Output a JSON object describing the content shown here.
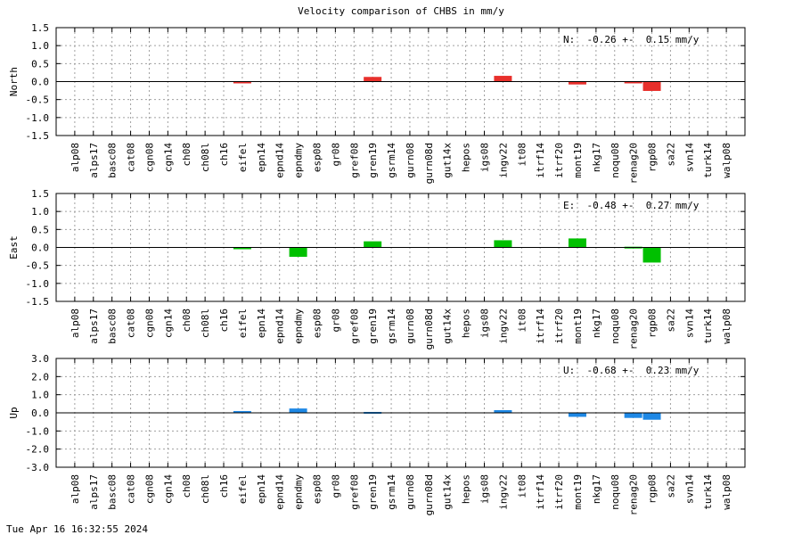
{
  "title": "Velocity comparison of CHBS in mm/y",
  "timestamp": "Tue Apr 16 16:32:55 2024",
  "chart_data": [
    {
      "type": "bar",
      "ylabel": "North",
      "ylim": [
        -1.5,
        1.5
      ],
      "yticks": [
        "1.5",
        "1.0",
        "0.5",
        "0.0",
        "-0.5",
        "-1.0",
        "-1.5"
      ],
      "ytick_values": [
        1.5,
        1.0,
        0.5,
        0.0,
        -0.5,
        -1.0,
        -1.5
      ],
      "annotation": "N:  -0.26 +-  0.15 mm/y",
      "color": "#e8302c",
      "grid": true,
      "categories": [
        "alp08",
        "alps17",
        "basc08",
        "cat08",
        "cgn08",
        "cgn14",
        "ch08",
        "ch08l",
        "ch16",
        "eifel",
        "epn14",
        "epnd14",
        "epndmy",
        "esp08",
        "gr08",
        "gref08",
        "gren19",
        "gsrm14",
        "gurn08",
        "gurn08d",
        "gut14x",
        "hepos",
        "igs08",
        "ingv22",
        "it08",
        "itrf14",
        "itrf20",
        "mont19",
        "nkg17",
        "noqu08",
        "renag20",
        "rgp08",
        "sa22",
        "svn14",
        "turk14",
        "walp08"
      ],
      "values": [
        0,
        0,
        0,
        0,
        0,
        0,
        0,
        0,
        0,
        -0.02,
        0,
        0,
        0,
        0,
        0,
        0,
        0.13,
        0,
        0,
        0,
        0,
        0,
        0,
        0.16,
        0,
        0,
        0,
        -0.08,
        0,
        0,
        -0.03,
        -0.26,
        0,
        0,
        0,
        0
      ]
    },
    {
      "type": "bar",
      "ylabel": "East",
      "ylim": [
        -1.5,
        1.5
      ],
      "yticks": [
        "1.5",
        "1.0",
        "0.5",
        "0.0",
        "-0.5",
        "-1.0",
        "-1.5"
      ],
      "ytick_values": [
        1.5,
        1.0,
        0.5,
        0.0,
        -0.5,
        -1.0,
        -1.5
      ],
      "annotation": "E:  -0.48 +-  0.27 mm/y",
      "color": "#00c000",
      "grid": true,
      "categories": [
        "alp08",
        "alps17",
        "basc08",
        "cat08",
        "cgn08",
        "cgn14",
        "ch08",
        "ch08l",
        "ch16",
        "eifel",
        "epn14",
        "epnd14",
        "epndmy",
        "esp08",
        "gr08",
        "gref08",
        "gren19",
        "gsrm14",
        "gurn08",
        "gurn08d",
        "gut14x",
        "hepos",
        "igs08",
        "ingv22",
        "it08",
        "itrf14",
        "itrf20",
        "mont19",
        "nkg17",
        "noqu08",
        "renag20",
        "rgp08",
        "sa22",
        "svn14",
        "turk14",
        "walp08"
      ],
      "values": [
        0,
        0,
        0,
        0,
        0,
        0,
        0,
        0,
        0,
        -0.03,
        0,
        0,
        -0.26,
        0,
        0,
        0,
        0.17,
        0,
        0,
        0,
        0,
        0,
        0,
        0.2,
        0,
        0,
        0,
        0.25,
        0,
        0,
        0.02,
        -0.42,
        0,
        0,
        0,
        0
      ]
    },
    {
      "type": "bar",
      "ylabel": "Up",
      "ylim": [
        -3.0,
        3.0
      ],
      "yticks": [
        "3.0",
        "2.0",
        "1.0",
        "0.0",
        "-1.0",
        "-2.0",
        "-3.0"
      ],
      "ytick_values": [
        3.0,
        2.0,
        1.0,
        0.0,
        -1.0,
        -2.0,
        -3.0
      ],
      "annotation": "U:  -0.68 +-  0.23 mm/y",
      "color": "#1e88e5",
      "grid": true,
      "categories": [
        "alp08",
        "alps17",
        "basc08",
        "cat08",
        "cgn08",
        "cgn14",
        "ch08",
        "ch08l",
        "ch16",
        "eifel",
        "epn14",
        "epnd14",
        "epndmy",
        "esp08",
        "gr08",
        "gref08",
        "gren19",
        "gsrm14",
        "gurn08",
        "gurn08d",
        "gut14x",
        "hepos",
        "igs08",
        "ingv22",
        "it08",
        "itrf14",
        "itrf20",
        "mont19",
        "nkg17",
        "noqu08",
        "renag20",
        "rgp08",
        "sa22",
        "svn14",
        "turk14",
        "walp08"
      ],
      "values": [
        0,
        0,
        0,
        0,
        0,
        0,
        0,
        0,
        0,
        0.1,
        0,
        0,
        0.24,
        0,
        0,
        0,
        0.05,
        0,
        0,
        0,
        0,
        0,
        0,
        0.15,
        0,
        0,
        0,
        -0.22,
        0,
        0,
        -0.28,
        -0.38,
        0,
        0,
        0,
        0
      ]
    }
  ]
}
